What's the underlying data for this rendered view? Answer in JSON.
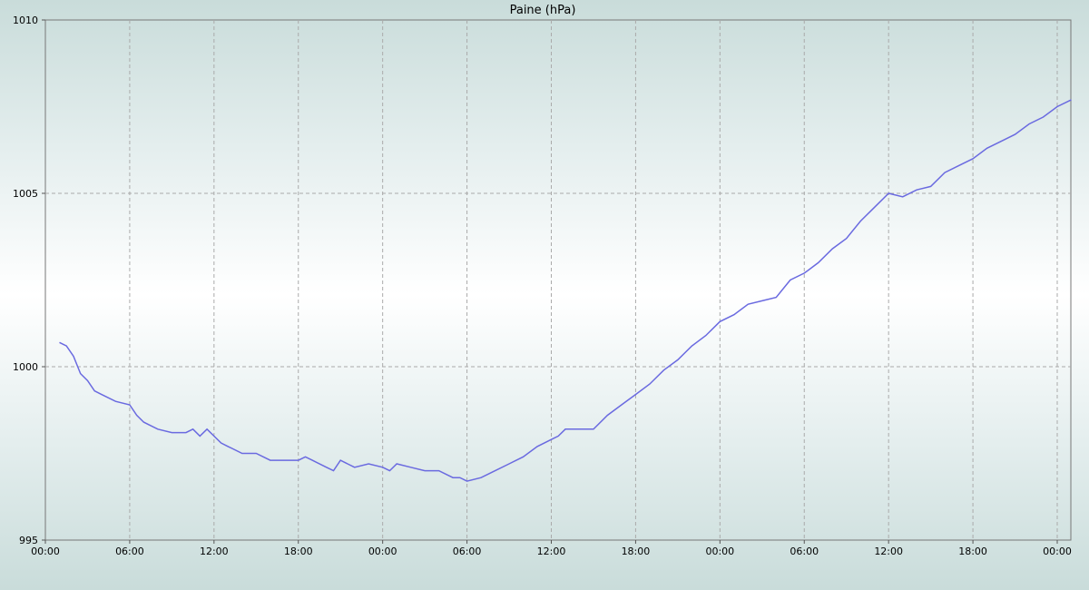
{
  "chart_data": {
    "type": "line",
    "title": "Paine (hPa)",
    "xlabel": "",
    "ylabel": "",
    "ylim": [
      995,
      1010
    ],
    "xlim_hours": [
      0,
      73
    ],
    "y_ticks": [
      995,
      1000,
      1005,
      1010
    ],
    "x_ticks": [
      {
        "hour": 0,
        "label": "00:00"
      },
      {
        "hour": 6,
        "label": "06:00"
      },
      {
        "hour": 12,
        "label": "12:00"
      },
      {
        "hour": 18,
        "label": "18:00"
      },
      {
        "hour": 24,
        "label": "00:00"
      },
      {
        "hour": 30,
        "label": "06:00"
      },
      {
        "hour": 36,
        "label": "12:00"
      },
      {
        "hour": 42,
        "label": "18:00"
      },
      {
        "hour": 48,
        "label": "00:00"
      },
      {
        "hour": 54,
        "label": "06:00"
      },
      {
        "hour": 60,
        "label": "12:00"
      },
      {
        "hour": 66,
        "label": "18:00"
      },
      {
        "hour": 72,
        "label": "00:00"
      }
    ],
    "grid": true,
    "line_color": "#6a6ae0",
    "series": [
      {
        "name": "",
        "x": [
          1.0,
          1.5,
          2.0,
          2.5,
          3.0,
          3.5,
          4.0,
          5.0,
          6.0,
          6.5,
          7.0,
          7.5,
          8.0,
          9.0,
          10.0,
          10.5,
          11.0,
          11.5,
          12.0,
          12.5,
          13.0,
          14.0,
          15.0,
          16.0,
          17.0,
          17.5,
          18.0,
          18.5,
          19.0,
          20.0,
          20.5,
          21.0,
          21.5,
          22.0,
          23.0,
          24.0,
          24.5,
          25.0,
          26.0,
          27.0,
          28.0,
          29.0,
          29.5,
          30.0,
          31.0,
          32.0,
          33.0,
          34.0,
          35.0,
          36.0,
          36.5,
          37.0,
          38.0,
          39.0,
          40.0,
          41.0,
          42.0,
          43.0,
          44.0,
          45.0,
          46.0,
          47.0,
          48.0,
          49.0,
          50.0,
          51.0,
          52.0,
          53.0,
          54.0,
          55.0,
          56.0,
          57.0,
          58.0,
          59.0,
          60.0,
          61.0,
          62.0,
          63.0,
          64.0,
          65.0,
          66.0,
          67.0,
          68.0,
          69.0,
          70.0,
          71.0,
          72.0,
          73.0
        ],
        "y": [
          1000.7,
          1000.6,
          1000.3,
          999.8,
          999.6,
          999.3,
          999.2,
          999.0,
          998.9,
          998.6,
          998.4,
          998.3,
          998.2,
          998.1,
          998.1,
          998.2,
          998.0,
          998.2,
          998.0,
          997.8,
          997.7,
          997.5,
          997.5,
          997.3,
          997.3,
          997.3,
          997.3,
          997.4,
          997.3,
          997.1,
          997.0,
          997.3,
          997.2,
          997.1,
          997.2,
          997.1,
          997.0,
          997.2,
          997.1,
          997.0,
          997.0,
          996.8,
          996.8,
          996.7,
          996.8,
          997.0,
          997.2,
          997.4,
          997.7,
          997.9,
          998.0,
          998.2,
          998.2,
          998.2,
          998.6,
          998.9,
          999.2,
          999.5,
          999.9,
          1000.2,
          1000.6,
          1000.9,
          1001.3,
          1001.5,
          1001.8,
          1001.9,
          1002.0,
          1002.5,
          1002.7,
          1003.0,
          1003.4,
          1003.7,
          1004.2,
          1004.6,
          1005.0,
          1004.9,
          1005.1,
          1005.2,
          1005.6,
          1005.8,
          1006.0,
          1006.3,
          1006.5,
          1006.7,
          1007.0,
          1007.2,
          1007.5,
          1007.7
        ]
      }
    ]
  }
}
